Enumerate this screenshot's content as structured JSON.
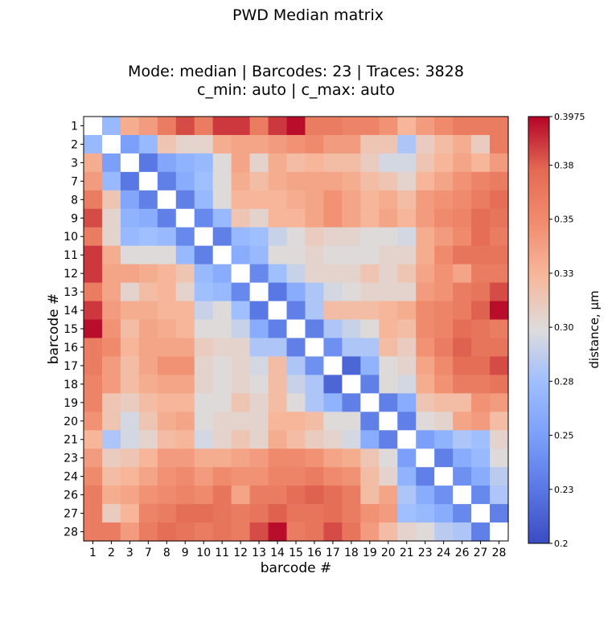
{
  "figure_title": "PWD Median matrix",
  "chart_data": {
    "type": "heatmap",
    "title_line1": "Mode: median | Barcodes: 23 | Traces: 3828",
    "title_line2": "c_min: auto | c_max: auto",
    "xlabel": "barcode #",
    "ylabel": "barcode #",
    "labels": [
      "1",
      "2",
      "3",
      "7",
      "8",
      "9",
      "10",
      "11",
      "12",
      "13",
      "14",
      "15",
      "16",
      "17",
      "18",
      "19",
      "20",
      "21",
      "23",
      "24",
      "26",
      "27",
      "28"
    ],
    "colormap": "coolwarm",
    "vmin": 0.2,
    "vmax": 0.3975,
    "colorbar_label": "distance, µm",
    "colorbar_ticks": [
      {
        "value": 0.2,
        "label": "0.2"
      },
      {
        "value": 0.225,
        "label": "0.23"
      },
      {
        "value": 0.25,
        "label": "0.25"
      },
      {
        "value": 0.275,
        "label": "0.28"
      },
      {
        "value": 0.3,
        "label": "0.30"
      },
      {
        "value": 0.325,
        "label": "0.33"
      },
      {
        "value": 0.35,
        "label": "0.35"
      },
      {
        "value": 0.375,
        "label": "0.38"
      },
      {
        "value": 0.3975,
        "label": "0.3975"
      }
    ],
    "matrix": [
      [
        null,
        0.27,
        0.33,
        0.34,
        0.36,
        0.38,
        0.36,
        0.385,
        0.385,
        0.36,
        0.385,
        0.395,
        0.36,
        0.36,
        0.355,
        0.355,
        0.345,
        0.325,
        0.34,
        0.35,
        0.36,
        0.36,
        0.36
      ],
      [
        0.27,
        null,
        0.25,
        0.27,
        0.315,
        0.305,
        0.305,
        0.33,
        0.335,
        0.335,
        0.34,
        0.345,
        0.35,
        0.34,
        0.34,
        0.315,
        0.315,
        0.28,
        0.31,
        0.32,
        0.33,
        0.31,
        0.36
      ],
      [
        0.33,
        0.25,
        null,
        0.225,
        0.255,
        0.265,
        0.27,
        0.3,
        0.335,
        0.305,
        0.33,
        0.32,
        0.325,
        0.32,
        0.32,
        0.31,
        0.295,
        0.295,
        0.315,
        0.325,
        0.335,
        0.325,
        0.34
      ],
      [
        0.34,
        0.27,
        0.225,
        null,
        0.23,
        0.26,
        0.275,
        0.3,
        0.33,
        0.32,
        0.33,
        0.335,
        0.335,
        0.335,
        0.33,
        0.32,
        0.315,
        0.305,
        0.325,
        0.335,
        0.345,
        0.355,
        0.36
      ],
      [
        0.36,
        0.315,
        0.255,
        0.23,
        null,
        0.23,
        0.27,
        0.3,
        0.325,
        0.325,
        0.325,
        0.33,
        0.335,
        0.345,
        0.335,
        0.325,
        0.33,
        0.32,
        0.34,
        0.345,
        0.35,
        0.36,
        0.37
      ],
      [
        0.38,
        0.305,
        0.265,
        0.26,
        0.23,
        null,
        0.235,
        0.27,
        0.315,
        0.305,
        0.325,
        0.325,
        0.335,
        0.345,
        0.335,
        0.325,
        0.335,
        0.325,
        0.34,
        0.35,
        0.355,
        0.37,
        0.365
      ],
      [
        0.36,
        0.305,
        0.27,
        0.275,
        0.27,
        0.235,
        null,
        0.23,
        0.27,
        0.275,
        0.29,
        0.3,
        0.31,
        0.305,
        0.305,
        0.3,
        0.3,
        0.295,
        0.33,
        0.34,
        0.35,
        0.37,
        0.36
      ],
      [
        0.385,
        0.33,
        0.3,
        0.3,
        0.3,
        0.27,
        0.23,
        null,
        0.26,
        0.27,
        0.3,
        0.3,
        0.305,
        0.3,
        0.3,
        0.3,
        0.305,
        0.305,
        0.33,
        0.35,
        0.365,
        0.365,
        0.365
      ],
      [
        0.385,
        0.335,
        0.335,
        0.33,
        0.325,
        0.315,
        0.27,
        0.26,
        null,
        0.235,
        0.275,
        0.29,
        0.305,
        0.305,
        0.305,
        0.315,
        0.305,
        0.315,
        0.335,
        0.345,
        0.335,
        0.36,
        0.36
      ],
      [
        0.36,
        0.335,
        0.305,
        0.32,
        0.325,
        0.305,
        0.275,
        0.27,
        0.235,
        null,
        0.225,
        0.26,
        0.28,
        0.295,
        0.3,
        0.305,
        0.305,
        0.305,
        0.34,
        0.345,
        0.36,
        0.365,
        0.38
      ],
      [
        0.385,
        0.34,
        0.33,
        0.33,
        0.325,
        0.325,
        0.29,
        0.3,
        0.275,
        0.225,
        null,
        0.23,
        0.28,
        0.32,
        0.32,
        0.32,
        0.325,
        0.33,
        0.35,
        0.355,
        0.36,
        0.375,
        0.395
      ],
      [
        0.395,
        0.345,
        0.32,
        0.335,
        0.33,
        0.325,
        0.3,
        0.3,
        0.29,
        0.26,
        0.23,
        null,
        0.23,
        0.28,
        0.29,
        0.3,
        0.325,
        0.32,
        0.35,
        0.355,
        0.37,
        0.365,
        0.36
      ],
      [
        0.36,
        0.35,
        0.325,
        0.335,
        0.335,
        0.335,
        0.31,
        0.305,
        0.305,
        0.28,
        0.28,
        0.23,
        null,
        0.24,
        0.28,
        0.28,
        0.32,
        0.31,
        0.345,
        0.36,
        0.375,
        0.365,
        0.365
      ],
      [
        0.36,
        0.34,
        0.32,
        0.335,
        0.345,
        0.345,
        0.305,
        0.3,
        0.305,
        0.295,
        0.32,
        0.28,
        0.24,
        null,
        0.215,
        0.265,
        0.3,
        0.305,
        0.335,
        0.35,
        0.37,
        0.37,
        0.38
      ],
      [
        0.355,
        0.34,
        0.32,
        0.33,
        0.335,
        0.335,
        0.305,
        0.3,
        0.305,
        0.3,
        0.32,
        0.29,
        0.28,
        0.215,
        null,
        0.23,
        0.3,
        0.295,
        0.33,
        0.345,
        0.36,
        0.36,
        0.365
      ],
      [
        0.355,
        0.315,
        0.31,
        0.32,
        0.325,
        0.325,
        0.3,
        0.3,
        0.315,
        0.305,
        0.32,
        0.3,
        0.28,
        0.265,
        0.23,
        null,
        0.23,
        0.26,
        0.315,
        0.32,
        0.32,
        0.345,
        0.34
      ],
      [
        0.345,
        0.315,
        0.295,
        0.315,
        0.33,
        0.335,
        0.3,
        0.305,
        0.305,
        0.305,
        0.325,
        0.325,
        0.32,
        0.3,
        0.3,
        0.23,
        null,
        0.23,
        0.3,
        0.305,
        0.335,
        0.34,
        0.32
      ],
      [
        0.325,
        0.28,
        0.295,
        0.305,
        0.32,
        0.325,
        0.295,
        0.305,
        0.315,
        0.305,
        0.33,
        0.32,
        0.31,
        0.305,
        0.295,
        0.26,
        0.23,
        null,
        0.25,
        0.265,
        0.28,
        0.275,
        0.305
      ],
      [
        0.34,
        0.31,
        0.315,
        0.325,
        0.34,
        0.34,
        0.33,
        0.33,
        0.335,
        0.34,
        0.35,
        0.35,
        0.345,
        0.335,
        0.33,
        0.315,
        0.3,
        0.25,
        null,
        0.23,
        0.26,
        0.27,
        0.3
      ],
      [
        0.35,
        0.32,
        0.325,
        0.335,
        0.345,
        0.35,
        0.34,
        0.35,
        0.345,
        0.345,
        0.355,
        0.355,
        0.36,
        0.35,
        0.345,
        0.32,
        0.305,
        0.265,
        0.23,
        null,
        0.24,
        0.26,
        0.285
      ],
      [
        0.36,
        0.33,
        0.335,
        0.345,
        0.35,
        0.355,
        0.35,
        0.365,
        0.335,
        0.36,
        0.36,
        0.37,
        0.375,
        0.37,
        0.36,
        0.32,
        0.335,
        0.28,
        0.26,
        0.24,
        null,
        0.235,
        0.28
      ],
      [
        0.36,
        0.31,
        0.325,
        0.355,
        0.36,
        0.37,
        0.37,
        0.365,
        0.36,
        0.365,
        0.375,
        0.365,
        0.365,
        0.37,
        0.36,
        0.345,
        0.34,
        0.275,
        0.27,
        0.26,
        0.235,
        null,
        0.23
      ],
      [
        0.36,
        0.36,
        0.34,
        0.36,
        0.37,
        0.365,
        0.36,
        0.365,
        0.36,
        0.38,
        0.395,
        0.36,
        0.365,
        0.38,
        0.365,
        0.34,
        0.32,
        0.305,
        0.3,
        0.285,
        0.28,
        0.23,
        null
      ]
    ]
  }
}
